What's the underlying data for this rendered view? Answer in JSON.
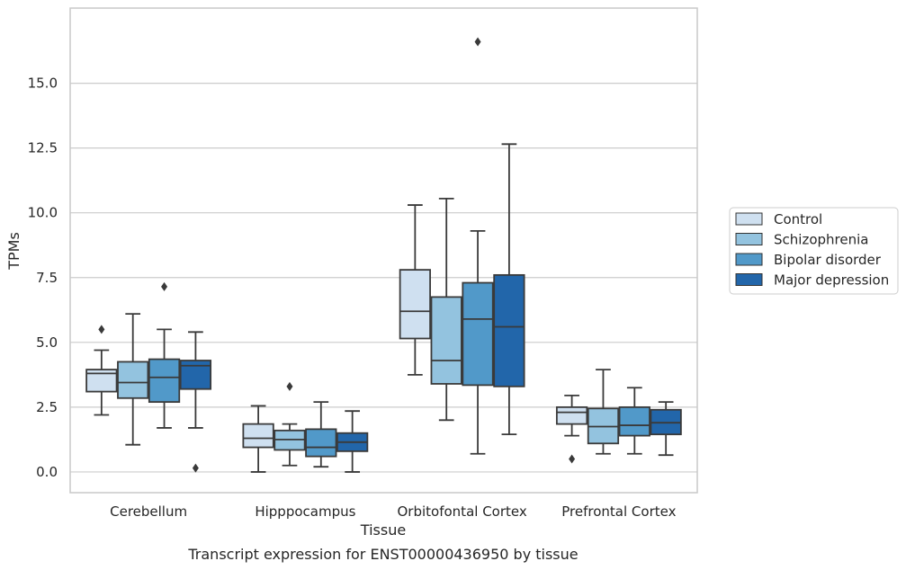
{
  "chart_data": {
    "type": "boxplot",
    "caption": "Transcript expression for ENST00000436950 by tissue",
    "xlabel": "Tissue",
    "ylabel": "TPMs",
    "ylim": [
      -0.8,
      17.9
    ],
    "yticks": [
      0.0,
      2.5,
      5.0,
      7.5,
      10.0,
      12.5,
      15.0
    ],
    "ytick_labels": [
      "0.0",
      "2.5",
      "5.0",
      "7.5",
      "10.0",
      "12.5",
      "15.0"
    ],
    "grid": "horizontal",
    "legend_position": "right",
    "categories": [
      "Cerebellum",
      "Hipppocampus",
      "Orbitofontal Cortex",
      "Prefrontal Cortex"
    ],
    "series": [
      {
        "name": "Control",
        "color": "#cfe0f0",
        "boxes": [
          {
            "whisker_low": 2.2,
            "q1": 3.1,
            "median": 3.8,
            "q3": 3.95,
            "whisker_high": 4.7,
            "outliers": [
              5.5
            ]
          },
          {
            "whisker_low": 0.0,
            "q1": 0.95,
            "median": 1.3,
            "q3": 1.85,
            "whisker_high": 2.55,
            "outliers": []
          },
          {
            "whisker_low": 3.75,
            "q1": 5.15,
            "median": 6.2,
            "q3": 7.8,
            "whisker_high": 10.3,
            "outliers": []
          },
          {
            "whisker_low": 1.4,
            "q1": 1.85,
            "median": 2.3,
            "q3": 2.5,
            "whisker_high": 2.95,
            "outliers": [
              0.5
            ]
          }
        ]
      },
      {
        "name": "Schizophrenia",
        "color": "#93c3df",
        "boxes": [
          {
            "whisker_low": 1.05,
            "q1": 2.85,
            "median": 3.45,
            "q3": 4.25,
            "whisker_high": 6.1,
            "outliers": []
          },
          {
            "whisker_low": 0.25,
            "q1": 0.85,
            "median": 1.25,
            "q3": 1.6,
            "whisker_high": 1.85,
            "outliers": [
              3.3
            ]
          },
          {
            "whisker_low": 2.0,
            "q1": 3.4,
            "median": 4.3,
            "q3": 6.75,
            "whisker_high": 10.55,
            "outliers": []
          },
          {
            "whisker_low": 0.7,
            "q1": 1.1,
            "median": 1.75,
            "q3": 2.45,
            "whisker_high": 3.95,
            "outliers": []
          }
        ]
      },
      {
        "name": "Bipolar disorder",
        "color": "#5199c9",
        "boxes": [
          {
            "whisker_low": 1.7,
            "q1": 2.7,
            "median": 3.65,
            "q3": 4.35,
            "whisker_high": 5.5,
            "outliers": [
              7.15
            ]
          },
          {
            "whisker_low": 0.2,
            "q1": 0.6,
            "median": 0.95,
            "q3": 1.65,
            "whisker_high": 2.7,
            "outliers": []
          },
          {
            "whisker_low": 0.7,
            "q1": 3.35,
            "median": 5.9,
            "q3": 7.3,
            "whisker_high": 9.3,
            "outliers": [
              16.6
            ]
          },
          {
            "whisker_low": 0.7,
            "q1": 1.4,
            "median": 1.8,
            "q3": 2.5,
            "whisker_high": 3.25,
            "outliers": []
          }
        ]
      },
      {
        "name": "Major depression",
        "color": "#2266aa",
        "boxes": [
          {
            "whisker_low": 1.7,
            "q1": 3.2,
            "median": 4.1,
            "q3": 4.3,
            "whisker_high": 5.4,
            "outliers": [
              0.15
            ]
          },
          {
            "whisker_low": 0.0,
            "q1": 0.8,
            "median": 1.15,
            "q3": 1.5,
            "whisker_high": 2.35,
            "outliers": []
          },
          {
            "whisker_low": 1.45,
            "q1": 3.3,
            "median": 5.6,
            "q3": 7.6,
            "whisker_high": 12.65,
            "outliers": []
          },
          {
            "whisker_low": 0.65,
            "q1": 1.45,
            "median": 1.9,
            "q3": 2.4,
            "whisker_high": 2.7,
            "outliers": []
          }
        ]
      }
    ]
  }
}
